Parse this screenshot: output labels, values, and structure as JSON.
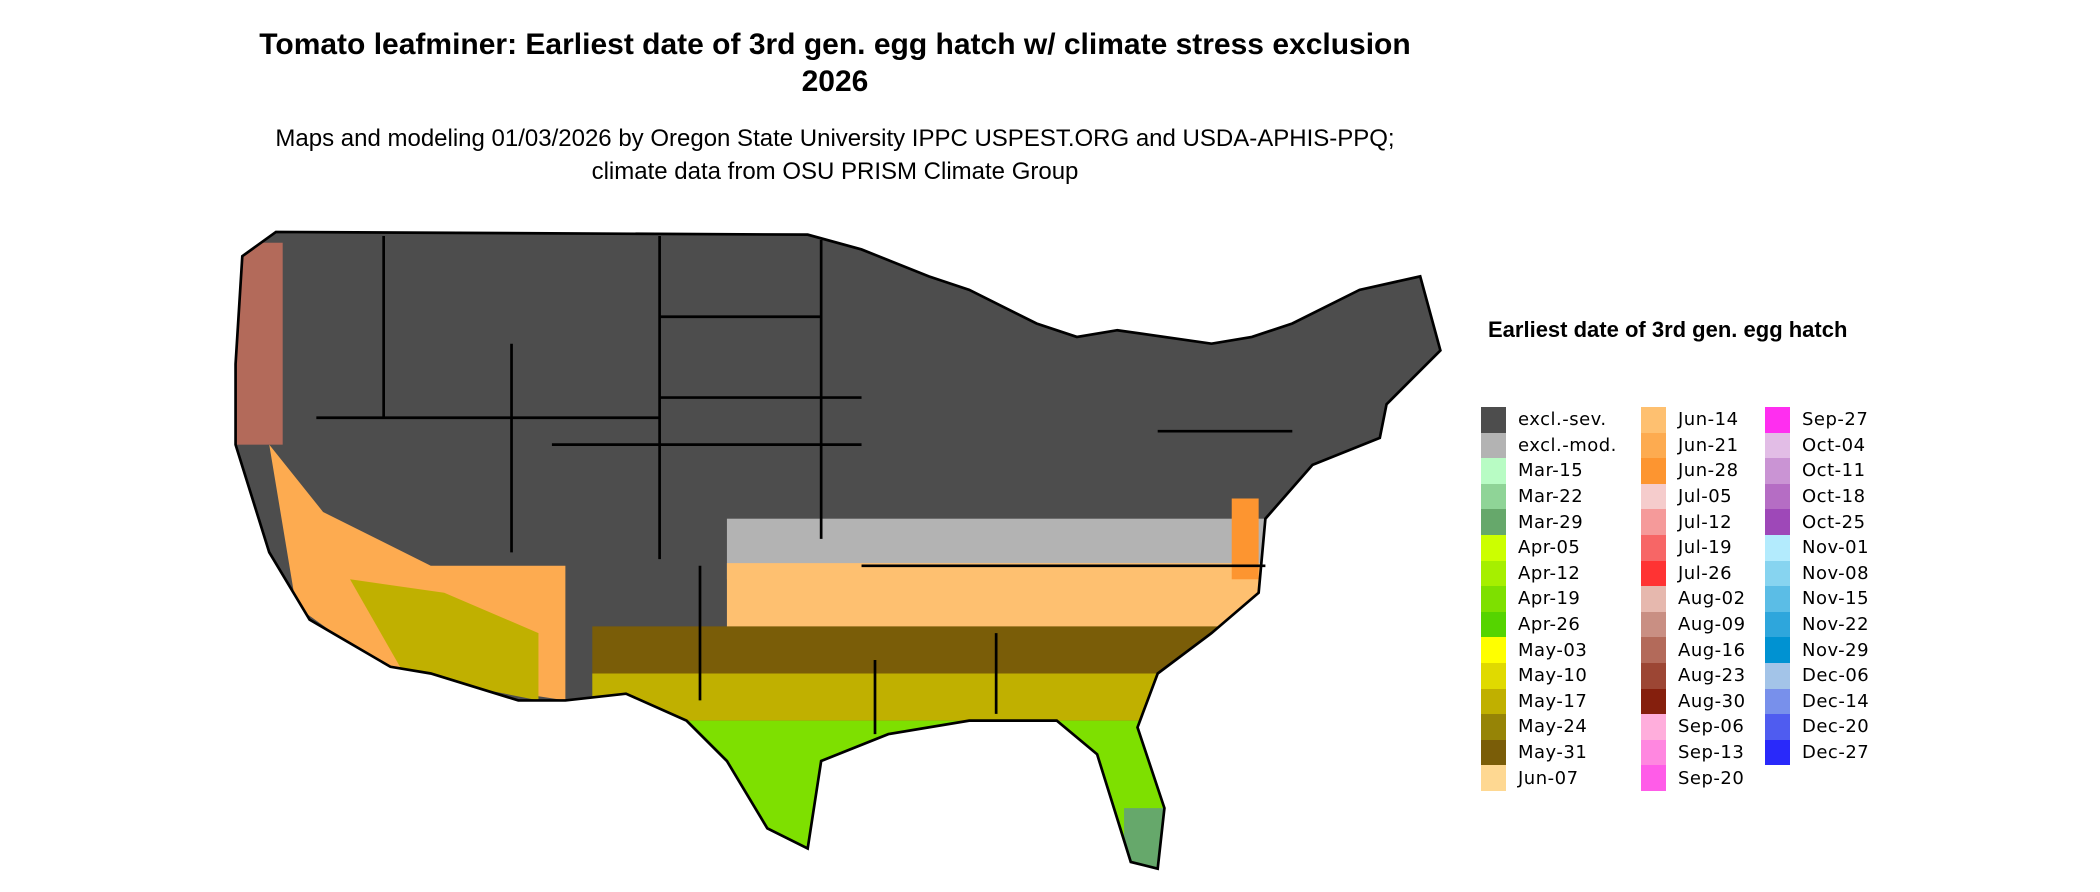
{
  "title": "Tomato leafminer: Earliest date of 3rd gen. egg hatch w/ climate stress exclusion 2026",
  "subtitle": "Maps and modeling 01/03/2026 by Oregon State University IPPC USPEST.ORG and USDA-APHIS-PPQ; climate data from OSU PRISM Climate Group",
  "legend": {
    "title": "Earliest date of 3rd gen. egg hatch",
    "columns": [
      [
        {
          "label": "excl.-sev.",
          "color": "#4d4d4d"
        },
        {
          "label": "excl.-mod.",
          "color": "#b3b3b3"
        },
        {
          "label": "Mar-15",
          "color": "#b8fcc4"
        },
        {
          "label": "Mar-22",
          "color": "#8fd497"
        },
        {
          "label": "Mar-29",
          "color": "#66a86b"
        },
        {
          "label": "Apr-05",
          "color": "#ccff00"
        },
        {
          "label": "Apr-12",
          "color": "#a6ef00"
        },
        {
          "label": "Apr-19",
          "color": "#7ee000"
        },
        {
          "label": "Apr-26",
          "color": "#55d400"
        },
        {
          "label": "May-03",
          "color": "#ffff00"
        },
        {
          "label": "May-10",
          "color": "#e0da00"
        },
        {
          "label": "May-17",
          "color": "#c0b000"
        },
        {
          "label": "May-24",
          "color": "#968406"
        },
        {
          "label": "May-31",
          "color": "#7a5d08"
        },
        {
          "label": "Jun-07",
          "color": "#fed892"
        }
      ],
      [
        {
          "label": "Jun-14",
          "color": "#fec070"
        },
        {
          "label": "Jun-21",
          "color": "#fdab50"
        },
        {
          "label": "Jun-28",
          "color": "#fd9530"
        },
        {
          "label": "Jul-05",
          "color": "#f5cccc"
        },
        {
          "label": "Jul-12",
          "color": "#f59a9a"
        },
        {
          "label": "Jul-19",
          "color": "#f76666"
        },
        {
          "label": "Jul-26",
          "color": "#ff3333"
        },
        {
          "label": "Aug-02",
          "color": "#e6b8ae"
        },
        {
          "label": "Aug-09",
          "color": "#c98f83"
        },
        {
          "label": "Aug-16",
          "color": "#b36a5a"
        },
        {
          "label": "Aug-23",
          "color": "#9c4634"
        },
        {
          "label": "Aug-30",
          "color": "#851f0d"
        },
        {
          "label": "Sep-06",
          "color": "#ffaedc"
        },
        {
          "label": "Sep-13",
          "color": "#ff87e0"
        },
        {
          "label": "Sep-20",
          "color": "#ff5ce8"
        }
      ],
      [
        {
          "label": "Sep-27",
          "color": "#ff2ef0"
        },
        {
          "label": "Oct-04",
          "color": "#e2bde6"
        },
        {
          "label": "Oct-11",
          "color": "#ca94d4"
        },
        {
          "label": "Oct-18",
          "color": "#b56dc4"
        },
        {
          "label": "Oct-25",
          "color": "#9e48b8"
        },
        {
          "label": "Nov-01",
          "color": "#b3ebfd"
        },
        {
          "label": "Nov-08",
          "color": "#87d4f0"
        },
        {
          "label": "Nov-15",
          "color": "#5bbde6"
        },
        {
          "label": "Nov-22",
          "color": "#2ea6dc"
        },
        {
          "label": "Nov-29",
          "color": "#0092d2"
        },
        {
          "label": "Dec-06",
          "color": "#a3c4e8"
        },
        {
          "label": "Dec-14",
          "color": "#7890eb"
        },
        {
          "label": "Dec-20",
          "color": "#4f5cf0"
        },
        {
          "label": "Dec-27",
          "color": "#2929fa"
        }
      ]
    ]
  }
}
